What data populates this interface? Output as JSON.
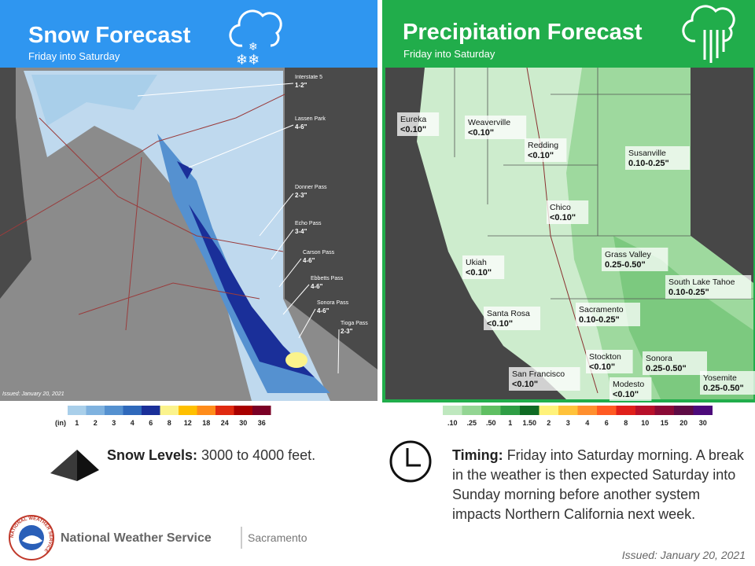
{
  "snow": {
    "title": "Snow Forecast",
    "subtitle": "Friday into Saturday",
    "issued": "Issued: January 20, 2021",
    "labels": [
      {
        "name": "Interstate 5",
        "value": "1-2\""
      },
      {
        "name": "Lassen Park",
        "value": "4-6\""
      },
      {
        "name": "Donner Pass",
        "value": "2-3\""
      },
      {
        "name": "Echo Pass",
        "value": "3-4\""
      },
      {
        "name": "Carson Pass",
        "value": "4-6\""
      },
      {
        "name": "Ebbetts Pass",
        "value": "4-6\""
      },
      {
        "name": "Sonora Pass",
        "value": "4-6\""
      },
      {
        "name": "Tioga Pass",
        "value": "2-3\""
      }
    ],
    "legend_unit": "(in)",
    "legend": [
      {
        "label": "1",
        "color": "#a9cfea"
      },
      {
        "label": "2",
        "color": "#7fb2df"
      },
      {
        "label": "3",
        "color": "#5591d0"
      },
      {
        "label": "4",
        "color": "#2f69bb"
      },
      {
        "label": "6",
        "color": "#1a2f99"
      },
      {
        "label": "8",
        "color": "#fbf38c"
      },
      {
        "label": "12",
        "color": "#ffc000"
      },
      {
        "label": "18",
        "color": "#ff8c1a"
      },
      {
        "label": "24",
        "color": "#e02a10"
      },
      {
        "label": "30",
        "color": "#a80000"
      },
      {
        "label": "36",
        "color": "#7a0025"
      }
    ]
  },
  "precip": {
    "title": "Precipitation Forecast",
    "subtitle": "Friday into Saturday",
    "labels": [
      {
        "name": "Eureka",
        "value": "<0.10\""
      },
      {
        "name": "Weaverville",
        "value": "<0.10\""
      },
      {
        "name": "Redding",
        "value": "<0.10\""
      },
      {
        "name": "Susanville",
        "value": "0.10-0.25\""
      },
      {
        "name": "Chico",
        "value": "<0.10\""
      },
      {
        "name": "Ukiah",
        "value": "<0.10\""
      },
      {
        "name": "Grass Valley",
        "value": "0.25-0.50\""
      },
      {
        "name": "South Lake Tahoe",
        "value": "0.10-0.25\""
      },
      {
        "name": "Santa Rosa",
        "value": "<0.10\""
      },
      {
        "name": "Sacramento",
        "value": "0.10-0.25\""
      },
      {
        "name": "Stockton",
        "value": "<0.10\""
      },
      {
        "name": "Sonora",
        "value": "0.25-0.50\""
      },
      {
        "name": "San Francisco",
        "value": "<0.10\""
      },
      {
        "name": "Modesto",
        "value": "<0.10\""
      },
      {
        "name": "Yosemite",
        "value": "0.25-0.50\""
      }
    ],
    "legend": [
      {
        "label": ".10",
        "color": "#bfe8bf"
      },
      {
        "label": ".25",
        "color": "#93d593"
      },
      {
        "label": ".50",
        "color": "#5fbf62"
      },
      {
        "label": "1",
        "color": "#2e9e45"
      },
      {
        "label": "1.50",
        "color": "#0f6b24"
      },
      {
        "label": "2",
        "color": "#fff27a"
      },
      {
        "label": "3",
        "color": "#ffc23a"
      },
      {
        "label": "4",
        "color": "#ff8f2e"
      },
      {
        "label": "6",
        "color": "#ff5a22"
      },
      {
        "label": "8",
        "color": "#e0201a"
      },
      {
        "label": "10",
        "color": "#b8102a"
      },
      {
        "label": "15",
        "color": "#8a0a36"
      },
      {
        "label": "20",
        "color": "#5e0b45"
      },
      {
        "label": "30",
        "color": "#4c0a7a"
      }
    ]
  },
  "snow_levels": {
    "label": "Snow Levels:",
    "text": "3000 to 4000 feet."
  },
  "timing": {
    "label": "Timing:",
    "text": "Friday into Saturday morning. A break in the weather is then expected Saturday into Sunday morning before another system impacts Northern California next week."
  },
  "footer": {
    "org": "National Weather Service",
    "office": "Sacramento",
    "logo_text": "NATIONAL WEATHER SERVICE",
    "issued": "Issued: January 20, 2021"
  }
}
